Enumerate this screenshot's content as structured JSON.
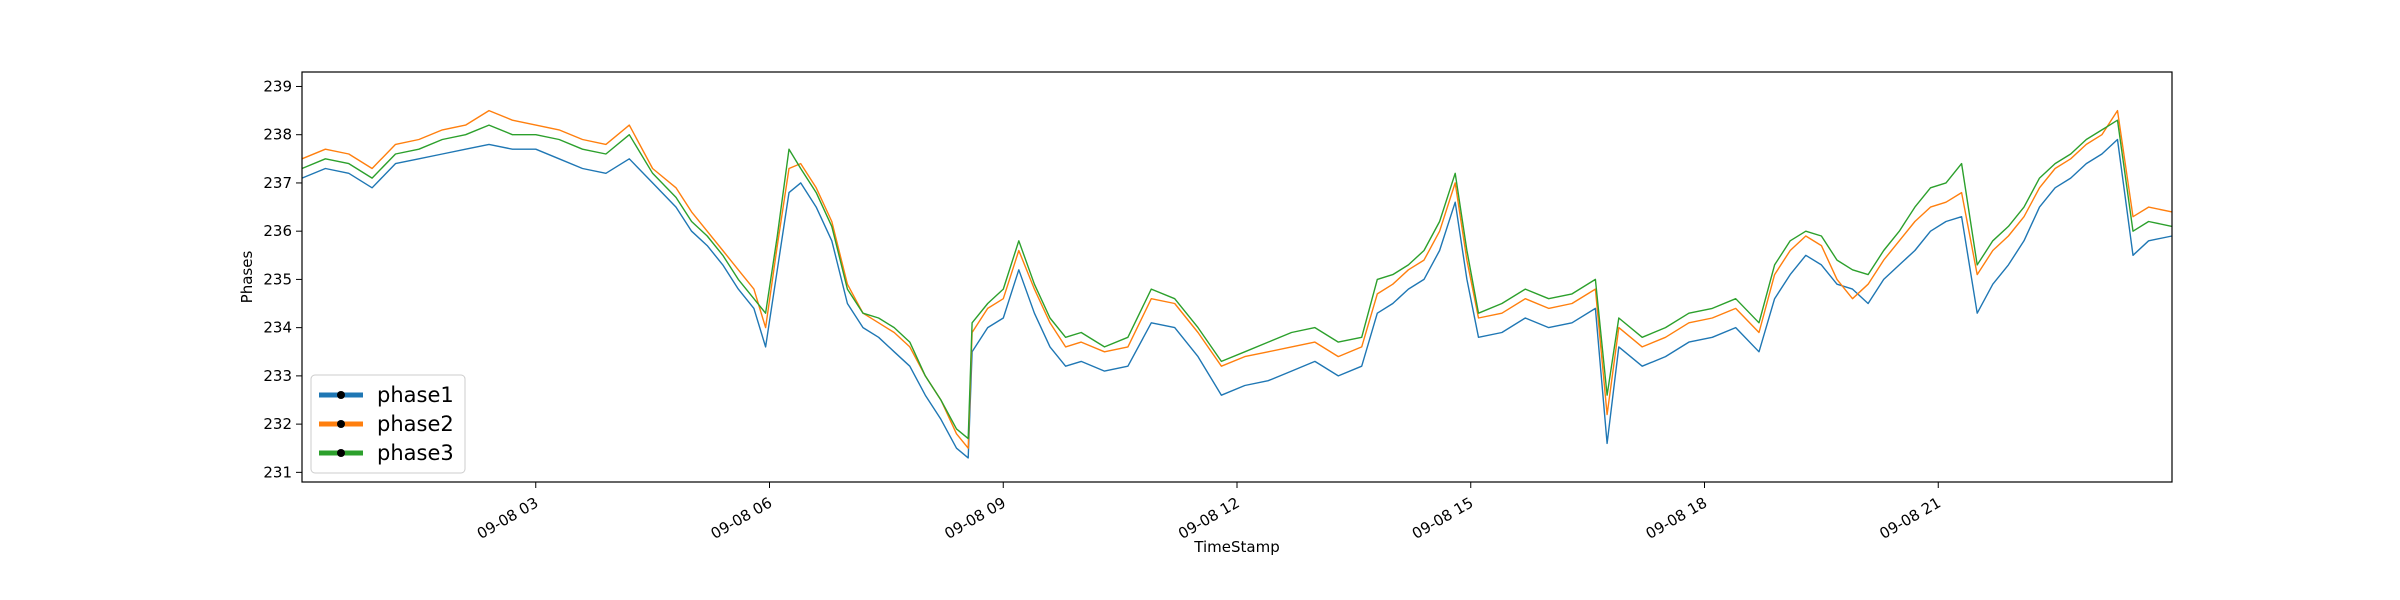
{
  "chart_data": {
    "type": "line",
    "title": "",
    "xlabel": "TimeStamp",
    "ylabel": "Phases",
    "xlim": [
      "09-08 00:00",
      "09-09 00:00"
    ],
    "ylim": [
      230.8,
      239.3
    ],
    "grid": false,
    "legend_position": "lower-left",
    "x_ticks": [
      {
        "h": 3,
        "label": "09-08 03"
      },
      {
        "h": 6,
        "label": "09-08 06"
      },
      {
        "h": 9,
        "label": "09-08 09"
      },
      {
        "h": 12,
        "label": "09-08 12"
      },
      {
        "h": 15,
        "label": "09-08 15"
      },
      {
        "h": 18,
        "label": "09-08 18"
      },
      {
        "h": 21,
        "label": "09-08 21"
      }
    ],
    "y_ticks": [
      231,
      232,
      233,
      234,
      235,
      236,
      237,
      238,
      239
    ],
    "series": [
      {
        "name": "phase1",
        "color": "#1f77b4",
        "x_hours": [
          0,
          0.3,
          0.6,
          0.9,
          1.2,
          1.5,
          1.8,
          2.1,
          2.4,
          2.7,
          3.0,
          3.3,
          3.6,
          3.9,
          4.2,
          4.5,
          4.8,
          5.0,
          5.2,
          5.4,
          5.6,
          5.8,
          5.95,
          6.1,
          6.25,
          6.4,
          6.6,
          6.8,
          7.0,
          7.2,
          7.4,
          7.6,
          7.8,
          8.0,
          8.2,
          8.4,
          8.55,
          8.6,
          8.8,
          9.0,
          9.2,
          9.4,
          9.6,
          9.8,
          10.0,
          10.3,
          10.6,
          10.9,
          11.2,
          11.5,
          11.8,
          12.1,
          12.4,
          12.7,
          13.0,
          13.3,
          13.6,
          13.8,
          14.0,
          14.2,
          14.4,
          14.6,
          14.8,
          14.95,
          15.1,
          15.4,
          15.7,
          16.0,
          16.3,
          16.6,
          16.75,
          16.9,
          17.2,
          17.5,
          17.8,
          18.1,
          18.4,
          18.7,
          18.9,
          19.1,
          19.3,
          19.5,
          19.7,
          19.9,
          20.1,
          20.3,
          20.5,
          20.7,
          20.9,
          21.1,
          21.3,
          21.5,
          21.7,
          21.9,
          22.1,
          22.3,
          22.5,
          22.7,
          22.9,
          23.1,
          23.3,
          23.5,
          23.7,
          24.0
        ],
        "values": [
          237.1,
          237.3,
          237.2,
          236.9,
          237.4,
          237.5,
          237.6,
          237.7,
          237.8,
          237.7,
          237.7,
          237.5,
          237.3,
          237.2,
          237.5,
          237.0,
          236.5,
          236.0,
          235.7,
          235.3,
          234.8,
          234.4,
          233.6,
          235.2,
          236.8,
          237.0,
          236.5,
          235.8,
          234.5,
          234.0,
          233.8,
          233.5,
          233.2,
          232.6,
          232.1,
          231.5,
          231.3,
          233.5,
          234.0,
          234.2,
          235.2,
          234.3,
          233.6,
          233.2,
          233.3,
          233.1,
          233.2,
          234.1,
          234.0,
          233.4,
          232.6,
          232.8,
          232.9,
          233.1,
          233.3,
          233.0,
          233.2,
          234.3,
          234.5,
          234.8,
          235.0,
          235.6,
          236.6,
          235.0,
          233.8,
          233.9,
          234.2,
          234.0,
          234.1,
          234.4,
          231.6,
          233.6,
          233.2,
          233.4,
          233.7,
          233.8,
          234.0,
          233.5,
          234.6,
          235.1,
          235.5,
          235.3,
          234.9,
          234.8,
          234.5,
          235.0,
          235.3,
          235.6,
          236.0,
          236.2,
          236.3,
          234.3,
          234.9,
          235.3,
          235.8,
          236.5,
          236.9,
          237.1,
          237.4,
          237.6,
          237.9,
          235.5,
          235.8,
          235.9
        ]
      },
      {
        "name": "phase2",
        "color": "#ff7f0e",
        "x_hours": [
          0,
          0.3,
          0.6,
          0.9,
          1.2,
          1.5,
          1.8,
          2.1,
          2.4,
          2.7,
          3.0,
          3.3,
          3.6,
          3.9,
          4.2,
          4.5,
          4.8,
          5.0,
          5.2,
          5.4,
          5.6,
          5.8,
          5.95,
          6.1,
          6.25,
          6.4,
          6.6,
          6.8,
          7.0,
          7.2,
          7.4,
          7.6,
          7.8,
          8.0,
          8.2,
          8.4,
          8.55,
          8.6,
          8.8,
          9.0,
          9.2,
          9.4,
          9.6,
          9.8,
          10.0,
          10.3,
          10.6,
          10.9,
          11.2,
          11.5,
          11.8,
          12.1,
          12.4,
          12.7,
          13.0,
          13.3,
          13.6,
          13.8,
          14.0,
          14.2,
          14.4,
          14.6,
          14.8,
          14.95,
          15.1,
          15.4,
          15.7,
          16.0,
          16.3,
          16.6,
          16.75,
          16.9,
          17.2,
          17.5,
          17.8,
          18.1,
          18.4,
          18.7,
          18.9,
          19.1,
          19.3,
          19.5,
          19.7,
          19.9,
          20.1,
          20.3,
          20.5,
          20.7,
          20.9,
          21.1,
          21.3,
          21.5,
          21.7,
          21.9,
          22.1,
          22.3,
          22.5,
          22.7,
          22.9,
          23.1,
          23.3,
          23.5,
          23.7,
          24.0
        ],
        "values": [
          237.5,
          237.7,
          237.6,
          237.3,
          237.8,
          237.9,
          238.1,
          238.2,
          238.5,
          238.3,
          238.2,
          238.1,
          237.9,
          237.8,
          238.2,
          237.3,
          236.9,
          236.4,
          236.0,
          235.6,
          235.2,
          234.8,
          234.0,
          235.7,
          237.3,
          237.4,
          236.9,
          236.2,
          234.9,
          234.3,
          234.1,
          233.9,
          233.6,
          233.0,
          232.5,
          231.8,
          231.5,
          233.9,
          234.4,
          234.6,
          235.6,
          234.8,
          234.1,
          233.6,
          233.7,
          233.5,
          233.6,
          234.6,
          234.5,
          233.9,
          233.2,
          233.4,
          233.5,
          233.6,
          233.7,
          233.4,
          233.6,
          234.7,
          234.9,
          235.2,
          235.4,
          236.0,
          237.0,
          235.4,
          234.2,
          234.3,
          234.6,
          234.4,
          234.5,
          234.8,
          232.2,
          234.0,
          233.6,
          233.8,
          234.1,
          234.2,
          234.4,
          233.9,
          235.1,
          235.6,
          235.9,
          235.7,
          235.0,
          234.6,
          234.9,
          235.4,
          235.8,
          236.2,
          236.5,
          236.6,
          236.8,
          235.1,
          235.6,
          235.9,
          236.3,
          236.9,
          237.3,
          237.5,
          237.8,
          238.0,
          238.5,
          236.3,
          236.5,
          236.4
        ]
      },
      {
        "name": "phase3",
        "color": "#2ca02c",
        "x_hours": [
          0,
          0.3,
          0.6,
          0.9,
          1.2,
          1.5,
          1.8,
          2.1,
          2.4,
          2.7,
          3.0,
          3.3,
          3.6,
          3.9,
          4.2,
          4.5,
          4.8,
          5.0,
          5.2,
          5.4,
          5.6,
          5.8,
          5.95,
          6.1,
          6.25,
          6.4,
          6.6,
          6.8,
          7.0,
          7.2,
          7.4,
          7.6,
          7.8,
          8.0,
          8.2,
          8.4,
          8.55,
          8.6,
          8.8,
          9.0,
          9.2,
          9.4,
          9.6,
          9.8,
          10.0,
          10.3,
          10.6,
          10.9,
          11.2,
          11.5,
          11.8,
          12.1,
          12.4,
          12.7,
          13.0,
          13.3,
          13.6,
          13.8,
          14.0,
          14.2,
          14.4,
          14.6,
          14.8,
          14.95,
          15.1,
          15.4,
          15.7,
          16.0,
          16.3,
          16.6,
          16.75,
          16.9,
          17.2,
          17.5,
          17.8,
          18.1,
          18.4,
          18.7,
          18.9,
          19.1,
          19.3,
          19.5,
          19.7,
          19.9,
          20.1,
          20.3,
          20.5,
          20.7,
          20.9,
          21.1,
          21.3,
          21.5,
          21.7,
          21.9,
          22.1,
          22.3,
          22.5,
          22.7,
          22.9,
          23.1,
          23.3,
          23.5,
          23.7,
          24.0
        ],
        "values": [
          237.3,
          237.5,
          237.4,
          237.1,
          237.6,
          237.7,
          237.9,
          238.0,
          238.2,
          238.0,
          238.0,
          237.9,
          237.7,
          237.6,
          238.0,
          237.2,
          236.7,
          236.2,
          235.9,
          235.5,
          235.0,
          234.6,
          234.3,
          235.9,
          237.7,
          237.3,
          236.8,
          236.1,
          234.8,
          234.3,
          234.2,
          234.0,
          233.7,
          233.0,
          232.5,
          231.9,
          231.7,
          234.1,
          234.5,
          234.8,
          235.8,
          234.9,
          234.2,
          233.8,
          233.9,
          233.6,
          233.8,
          234.8,
          234.6,
          234.0,
          233.3,
          233.5,
          233.7,
          233.9,
          234.0,
          233.7,
          233.8,
          235.0,
          235.1,
          235.3,
          235.6,
          236.2,
          237.2,
          235.6,
          234.3,
          234.5,
          234.8,
          234.6,
          234.7,
          235.0,
          232.6,
          234.2,
          233.8,
          234.0,
          234.3,
          234.4,
          234.6,
          234.1,
          235.3,
          235.8,
          236.0,
          235.9,
          235.4,
          235.2,
          235.1,
          235.6,
          236.0,
          236.5,
          236.9,
          237.0,
          237.4,
          235.3,
          235.8,
          236.1,
          236.5,
          237.1,
          237.4,
          237.6,
          237.9,
          238.1,
          238.3,
          236.0,
          236.2,
          236.1
        ]
      }
    ]
  }
}
